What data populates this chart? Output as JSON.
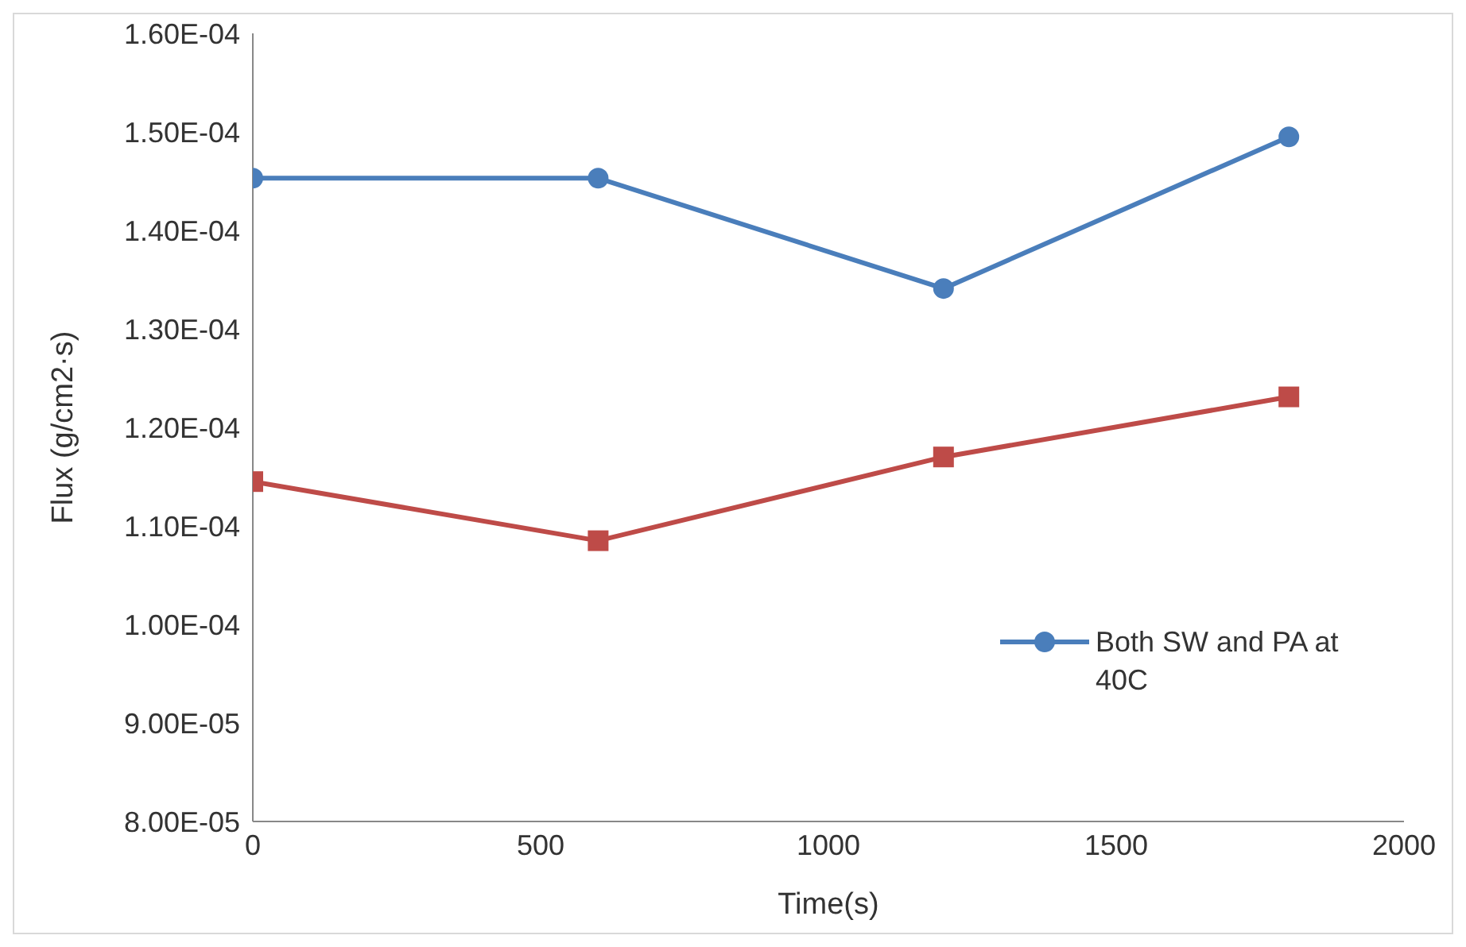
{
  "chart_data": {
    "type": "line",
    "xlabel": "Time(s)",
    "ylabel": "Flux (g/cm2·s)",
    "x": [
      0,
      600,
      1200,
      1800
    ],
    "series": [
      {
        "name": "Both SW and PA at 40C",
        "color": "#4a7ebb",
        "marker": "circle",
        "values": [
          0.0001453,
          0.0001453,
          0.0001341,
          0.0001495
        ]
      },
      {
        "color": "#be4b48",
        "marker": "square",
        "values": [
          0.0001145,
          0.0001085,
          0.000117,
          0.0001231
        ]
      }
    ],
    "xlim": [
      0,
      2000
    ],
    "xticks": [
      0,
      500,
      1000,
      1500,
      2000
    ],
    "ylim": [
      8e-05,
      0.00016
    ],
    "yticks": [
      {
        "value": 8e-05,
        "label": "8.00E-05"
      },
      {
        "value": 9e-05,
        "label": "9.00E-05"
      },
      {
        "value": 0.0001,
        "label": "1.00E-04"
      },
      {
        "value": 0.00011,
        "label": "1.10E-04"
      },
      {
        "value": 0.00012,
        "label": "1.20E-04"
      },
      {
        "value": 0.00013,
        "label": "1.30E-04"
      },
      {
        "value": 0.00014,
        "label": "1.40E-04"
      },
      {
        "value": 0.00015,
        "label": "1.50E-04"
      },
      {
        "value": 0.00016,
        "label": "1.60E-04"
      }
    ],
    "grid": false,
    "legend": "bottom right",
    "line_style": "solid"
  }
}
